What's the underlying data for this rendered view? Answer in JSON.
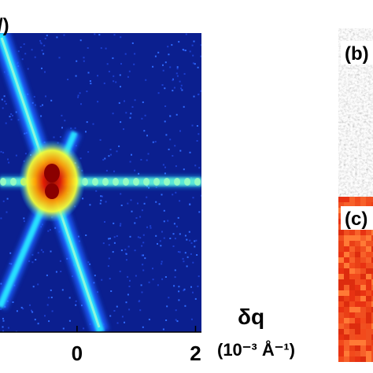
{
  "figure": {
    "panel_a": {
      "top_label_fragment": "/)"
    },
    "panel_b": {
      "label": "(b)"
    },
    "panel_c": {
      "label": "(c)"
    }
  },
  "chart_data": [
    {
      "type": "heatmap",
      "xlabel_symbol": "δq",
      "xlabel_units": "(10⁻³ Å⁻¹)",
      "x_ticks": [
        {
          "value": 0,
          "label": "0"
        },
        {
          "value": 2,
          "label": "2"
        }
      ],
      "xlim": [
        -1.3,
        2.1
      ],
      "features": {
        "central_peak": {
          "x": 0,
          "y": 0
        },
        "streaks": [
          "horizontal",
          "diagonal"
        ]
      },
      "colormap": "jet",
      "colors": {
        "background": "#0b1f8f",
        "low": "#1f5fff",
        "mid": "#27e0ff",
        "high": "#ffe840",
        "peak": "#b10000"
      }
    },
    {
      "type": "heatmap",
      "panel": "b",
      "colormap": "gray"
    },
    {
      "type": "heatmap",
      "panel": "c",
      "colormap": "hot",
      "colors": {
        "base": "#f24a1c"
      }
    }
  ]
}
